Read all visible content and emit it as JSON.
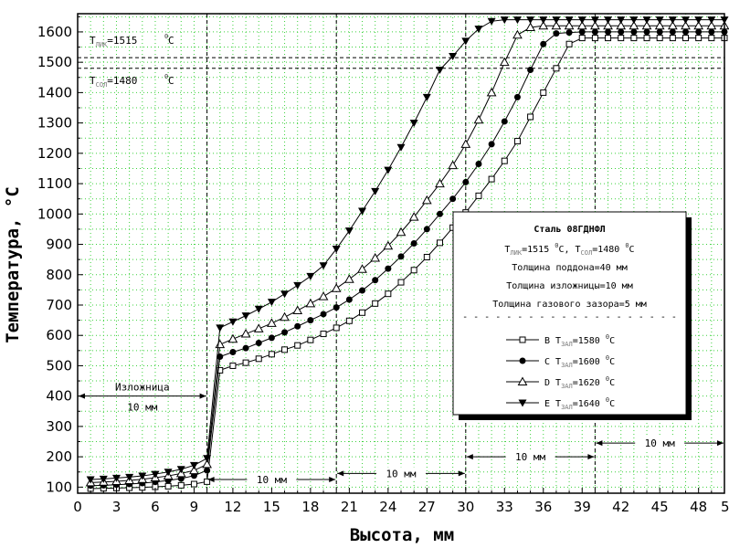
{
  "chart_data": {
    "type": "line",
    "xlabel": "Высота, мм",
    "ylabel": "Температура, °C",
    "xlim": [
      0,
      50
    ],
    "ylim": [
      80,
      1660
    ],
    "x_ticks": [
      0,
      3,
      6,
      9,
      12,
      15,
      18,
      21,
      24,
      27,
      30,
      33,
      36,
      39,
      42,
      45,
      48
    ],
    "x_tick_last_label": "5",
    "y_ticks": [
      100,
      200,
      300,
      400,
      500,
      600,
      700,
      800,
      900,
      1000,
      1100,
      1200,
      1300,
      1400,
      1500,
      1600
    ],
    "grid": true,
    "reference_lines": [
      {
        "axis": "y",
        "value": 1515,
        "label_main": "T",
        "label_sub": "ЛИК",
        "label_rest": "=1515",
        "label_unit": "C"
      },
      {
        "axis": "y",
        "value": 1480,
        "label_main": "T",
        "label_sub": "СОЛ",
        "label_rest": "=1480",
        "label_unit": "C"
      }
    ],
    "vertical_markers": [
      10,
      20,
      30,
      40,
      50
    ],
    "degree_sign": "0",
    "dimension_annotations": [
      {
        "from": 0,
        "to": 10,
        "y": 400,
        "label_top": "Изложница",
        "label_bottom": "10 мм"
      },
      {
        "from": 10,
        "to": 20,
        "y": 125,
        "label": "10 мм"
      },
      {
        "from": 20,
        "to": 30,
        "y": 145,
        "label": "10 мм"
      },
      {
        "from": 30,
        "to": 40,
        "y": 200,
        "label": "10 мм"
      },
      {
        "from": 40,
        "to": 50,
        "y": 245,
        "label": "10 мм"
      }
    ],
    "series": [
      {
        "name": "B",
        "marker": "open-square",
        "label_main": "T",
        "label_sub": "ЗАЛ",
        "label_rest": "=1580",
        "x": [
          1,
          2,
          3,
          4,
          5,
          6,
          7,
          8,
          9,
          10,
          10.5,
          11,
          12,
          13,
          14,
          15,
          16,
          17,
          18,
          19,
          20,
          21,
          22,
          23,
          24,
          25,
          26,
          27,
          28,
          29,
          30,
          31,
          32,
          33,
          34,
          35,
          36,
          37,
          38,
          39,
          40,
          41,
          42,
          43,
          44,
          45,
          46,
          47,
          48,
          49,
          50
        ],
        "values": [
          95,
          96,
          97,
          98,
          99,
          101,
          103,
          106,
          110,
          118,
          300,
          485,
          500,
          510,
          523,
          538,
          553,
          567,
          585,
          605,
          625,
          648,
          675,
          705,
          737,
          775,
          815,
          858,
          905,
          955,
          1005,
          1060,
          1115,
          1175,
          1240,
          1320,
          1400,
          1480,
          1560,
          1580,
          1580,
          1580,
          1580,
          1580,
          1580,
          1580,
          1580,
          1580,
          1580,
          1580,
          1580
        ]
      },
      {
        "name": "C",
        "marker": "filled-circle",
        "label_main": "T",
        "label_sub": "ЗАЛ",
        "label_rest": "=1600",
        "x": [
          1,
          2,
          3,
          4,
          5,
          6,
          7,
          8,
          9,
          10,
          10.5,
          11,
          12,
          13,
          14,
          15,
          16,
          17,
          18,
          19,
          20,
          21,
          22,
          23,
          24,
          25,
          26,
          27,
          28,
          29,
          30,
          31,
          32,
          33,
          34,
          35,
          36,
          37,
          38,
          39,
          40,
          41,
          42,
          43,
          44,
          45,
          46,
          47,
          48,
          49,
          50
        ],
        "values": [
          105,
          106,
          108,
          110,
          113,
          117,
          122,
          128,
          138,
          155,
          340,
          530,
          545,
          558,
          575,
          592,
          610,
          630,
          650,
          670,
          692,
          718,
          748,
          782,
          820,
          860,
          903,
          950,
          1000,
          1050,
          1105,
          1165,
          1230,
          1305,
          1385,
          1475,
          1560,
          1595,
          1598,
          1600,
          1600,
          1600,
          1600,
          1600,
          1600,
          1600,
          1600,
          1600,
          1600,
          1600,
          1600
        ]
      },
      {
        "name": "D",
        "marker": "open-triangle",
        "label_main": "T",
        "label_sub": "ЗАЛ",
        "label_rest": "=1620",
        "x": [
          1,
          2,
          3,
          4,
          5,
          6,
          7,
          8,
          9,
          10,
          10.5,
          11,
          12,
          13,
          14,
          15,
          16,
          17,
          18,
          19,
          20,
          21,
          22,
          23,
          24,
          25,
          26,
          27,
          28,
          29,
          30,
          31,
          32,
          33,
          34,
          35,
          36,
          37,
          38,
          39,
          40,
          41,
          42,
          43,
          44,
          45,
          46,
          47,
          48,
          49,
          50
        ],
        "values": [
          115,
          117,
          119,
          122,
          126,
          131,
          137,
          145,
          155,
          175,
          370,
          570,
          588,
          605,
          622,
          640,
          660,
          682,
          705,
          728,
          755,
          785,
          818,
          855,
          895,
          940,
          990,
          1045,
          1100,
          1160,
          1230,
          1310,
          1400,
          1500,
          1590,
          1615,
          1620,
          1620,
          1620,
          1620,
          1620,
          1620,
          1620,
          1620,
          1620,
          1620,
          1620,
          1620,
          1620,
          1620,
          1620
        ]
      },
      {
        "name": "E",
        "marker": "filled-triangle-down",
        "label_main": "T",
        "label_sub": "ЗАЛ",
        "label_rest": "=1640",
        "x": [
          1,
          2,
          3,
          4,
          5,
          6,
          7,
          8,
          9,
          10,
          10.5,
          11,
          12,
          13,
          14,
          15,
          16,
          17,
          18,
          19,
          20,
          21,
          22,
          23,
          24,
          25,
          26,
          27,
          28,
          29,
          30,
          31,
          32,
          33,
          34,
          35,
          36,
          37,
          38,
          39,
          40,
          41,
          42,
          43,
          44,
          45,
          46,
          47,
          48,
          49,
          50
        ],
        "values": [
          125,
          127,
          130,
          133,
          137,
          143,
          150,
          159,
          172,
          195,
          410,
          625,
          645,
          665,
          687,
          710,
          737,
          765,
          795,
          830,
          885,
          945,
          1010,
          1075,
          1145,
          1220,
          1300,
          1385,
          1475,
          1520,
          1570,
          1610,
          1635,
          1640,
          1640,
          1640,
          1640,
          1640,
          1640,
          1640,
          1640,
          1640,
          1640,
          1640,
          1640,
          1640,
          1640,
          1640,
          1640,
          1640,
          1640
        ]
      }
    ],
    "legend": {
      "title": "Сталь 08ГДНФЛ",
      "line1_T1": "T",
      "line1_sub1": "ЛИК",
      "line1_rest1": "=1515",
      "line1_unit1": "C,",
      "line1_T2": " T",
      "line1_sub2": "СОЛ",
      "line1_rest2": "=1480",
      "line1_unit2": "C",
      "line2": "Толщина поддона=40 мм",
      "line3": "Толщина изложницы=10 мм",
      "line4": "Толщина газового зазора=5 мм",
      "separator": "- - - - - - - - - - - - - - - - - - - -",
      "unit": "C"
    }
  }
}
